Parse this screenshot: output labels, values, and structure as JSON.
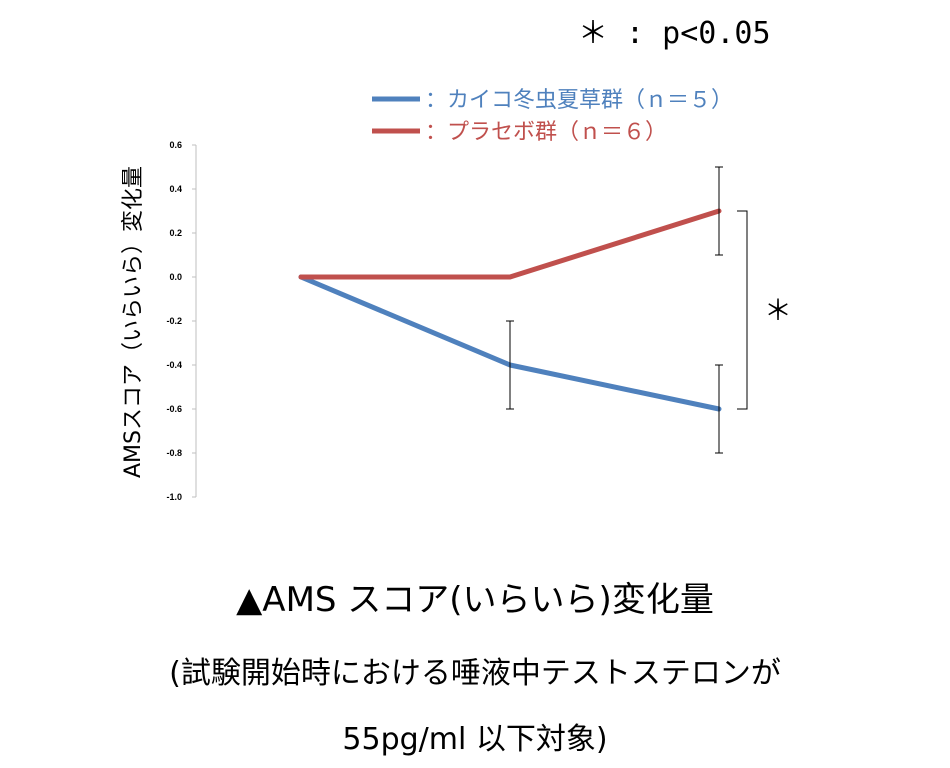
{
  "significance_note": "＊ : p<0.05",
  "caption": {
    "title": "▲AMS スコア(いらいら)変化量",
    "note_line1": "(試験開始時における唾液中テストステロンが",
    "note_line2": "55pg/ml 以下対象)"
  },
  "chart_data": {
    "type": "line",
    "title": "",
    "xlabel": "",
    "ylabel": "AMSスコア（いらいら）変化量",
    "ylim": [
      -1.0,
      0.6
    ],
    "yticks": [
      "0.6",
      "0.4",
      "0.2",
      "0.0",
      "-0.2",
      "-0.4",
      "-0.6",
      "-0.8",
      "-1.0"
    ],
    "x": [
      0,
      1,
      2
    ],
    "grid": false,
    "legend_position": "top",
    "series": [
      {
        "name": "：カイコ冬虫夏草群（ｎ＝５）",
        "color": "#4f81bd",
        "values": [
          0.0,
          -0.4,
          -0.6
        ],
        "errors": [
          null,
          0.2,
          0.2
        ]
      },
      {
        "name": "：プラセボ群（ｎ＝６）",
        "color": "#c0504d",
        "values": [
          0.0,
          0.0,
          0.3
        ],
        "errors": [
          null,
          null,
          0.2
        ]
      }
    ],
    "annotations": [
      {
        "text": "＊",
        "between_series_at_x": 2
      }
    ]
  }
}
